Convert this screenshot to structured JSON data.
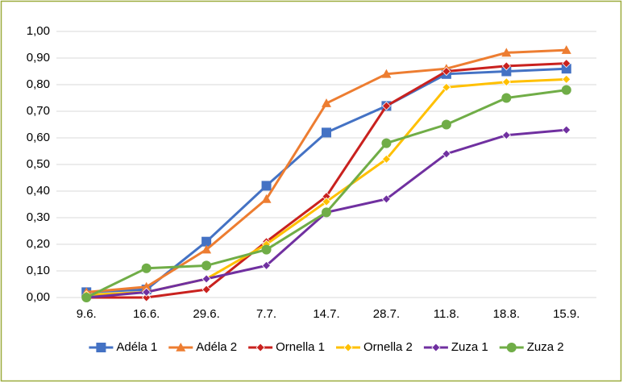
{
  "chart_data": {
    "type": "line",
    "categories": [
      "9.6.",
      "16.6.",
      "29.6.",
      "7.7.",
      "14.7.",
      "28.7.",
      "11.8.",
      "18.8.",
      "15.9."
    ],
    "series": [
      {
        "name": "Adéla 1",
        "color": "#4472c4",
        "marker": "square",
        "values": [
          0.02,
          0.03,
          0.21,
          0.42,
          0.62,
          0.72,
          0.84,
          0.85,
          0.86
        ]
      },
      {
        "name": "Adéla 2",
        "color": "#ed7d31",
        "marker": "triangle",
        "values": [
          0.02,
          0.04,
          0.18,
          0.37,
          0.73,
          0.84,
          0.86,
          0.92,
          0.93
        ]
      },
      {
        "name": "Ornella 1",
        "color": "#c9211e",
        "marker": "diamond",
        "values": [
          0.0,
          0.0,
          0.03,
          0.21,
          0.38,
          0.72,
          0.85,
          0.87,
          0.88
        ]
      },
      {
        "name": "Ornella 2",
        "color": "#ffc000",
        "marker": "diamond",
        "values": [
          0.01,
          0.02,
          0.07,
          0.2,
          0.36,
          0.52,
          0.79,
          0.81,
          0.82
        ]
      },
      {
        "name": "Zuza 1",
        "color": "#7030a0",
        "marker": "diamond",
        "values": [
          0.0,
          0.02,
          0.07,
          0.12,
          0.32,
          0.37,
          0.54,
          0.61,
          0.63
        ]
      },
      {
        "name": "Zuza 2",
        "color": "#70ad47",
        "marker": "circle",
        "values": [
          0.0,
          0.11,
          0.12,
          0.18,
          0.32,
          0.58,
          0.65,
          0.75,
          0.78
        ]
      }
    ],
    "ylim": [
      0,
      1
    ],
    "yticks": [
      {
        "value": 0,
        "label": "0,00"
      },
      {
        "value": 0.1,
        "label": "0,10"
      },
      {
        "value": 0.2,
        "label": "0,20"
      },
      {
        "value": 0.3,
        "label": "0,30"
      },
      {
        "value": 0.4,
        "label": "0,40"
      },
      {
        "value": 0.5,
        "label": "0,50"
      },
      {
        "value": 0.6,
        "label": "0,60"
      },
      {
        "value": 0.7,
        "label": "0,70"
      },
      {
        "value": 0.8,
        "label": "0,80"
      },
      {
        "value": 0.9,
        "label": "0,90"
      },
      {
        "value": 1,
        "label": "1,00"
      }
    ],
    "grid": true,
    "legend": "bottom"
  }
}
